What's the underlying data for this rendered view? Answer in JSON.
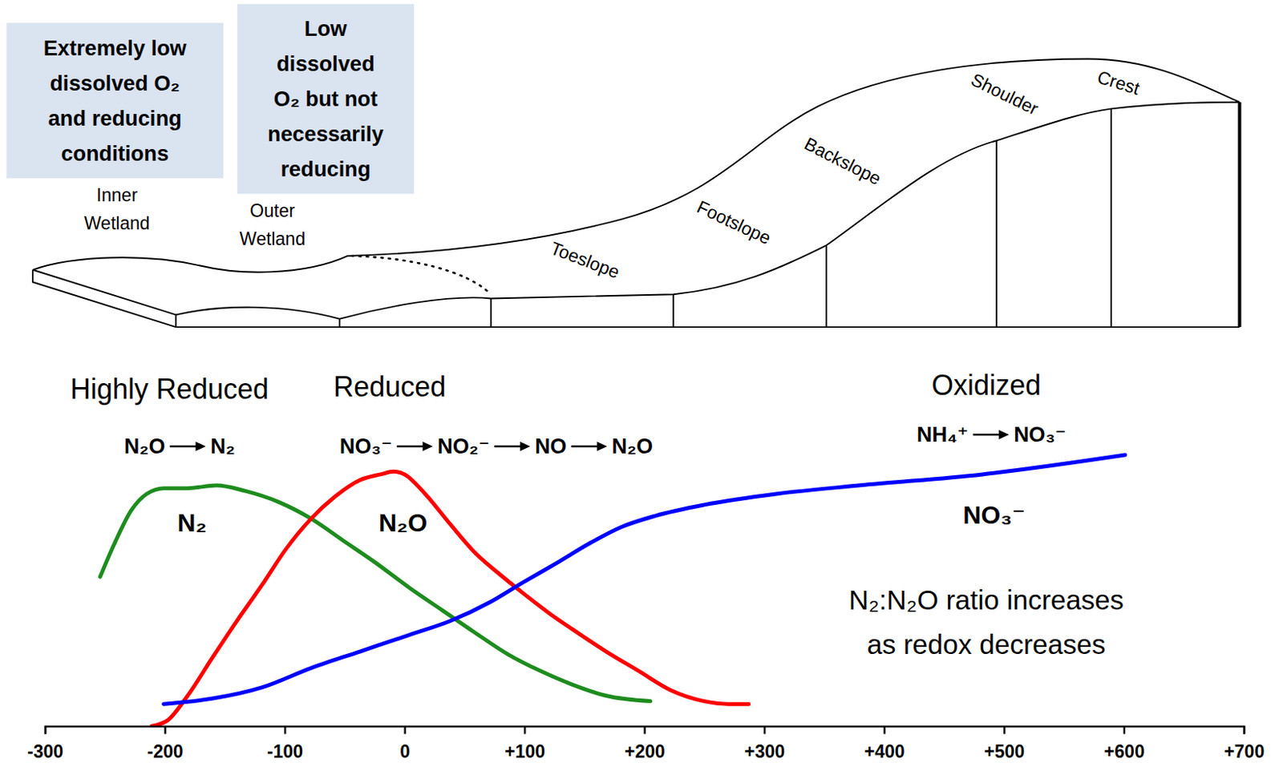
{
  "chart_data": {
    "type": "line",
    "xlim": [
      -300,
      700
    ],
    "xticks": [
      -300,
      -200,
      -100,
      0,
      {
        "value": 100,
        "label": "+100"
      },
      {
        "value": 200,
        "label": "+200"
      },
      {
        "value": 300,
        "label": "+300"
      },
      {
        "value": 400,
        "label": "+400"
      },
      {
        "value": 500,
        "label": "+500"
      },
      {
        "value": 600,
        "label": "+600"
      },
      {
        "value": 700,
        "label": "+700"
      }
    ],
    "ylim": [
      0,
      100
    ],
    "tick_labels": "x",
    "series": [
      {
        "name": "N₂",
        "color": "#1e8c1e",
        "x": [
          -254,
          -242,
          -228,
          -215,
          -201,
          -181,
          -157,
          -133,
          -105,
          -78,
          -51,
          -24,
          4,
          31,
          58,
          86,
          113,
          140,
          168,
          205
        ],
        "values": [
          54,
          66,
          78,
          84,
          86,
          86,
          87,
          85,
          81,
          75,
          67,
          59,
          50,
          42,
          34,
          26,
          20,
          15,
          11,
          9
        ]
      },
      {
        "name": "N₂O",
        "color": "#ff0000",
        "x": [
          -211,
          -198,
          -181,
          -160,
          -140,
          -119,
          -99,
          -78,
          -58,
          -37,
          -20,
          -9,
          0,
          17,
          38,
          58,
          79,
          99,
          120,
          140,
          168,
          195,
          222,
          250,
          270,
          287
        ],
        "values": [
          0,
          2,
          11,
          25,
          38,
          51,
          64,
          75,
          83,
          89,
          91,
          92,
          91,
          84,
          73,
          63,
          55,
          48,
          41,
          35,
          27,
          20,
          13,
          9,
          8,
          8
        ]
      },
      {
        "name": "NO₃⁻",
        "color": "#0000ff",
        "x": [
          -201,
          -160,
          -119,
          -78,
          -37,
          4,
          38,
          72,
          99,
          127,
          154,
          181,
          209,
          250,
          311,
          379,
          482,
          601
        ],
        "values": [
          8,
          10,
          14,
          21,
          27,
          33,
          38,
          45,
          52,
          59,
          66,
          72,
          76,
          80,
          84,
          87,
          91,
          98
        ]
      }
    ],
    "zones": [
      "Highly Reduced",
      "Reduced",
      "Oxidized"
    ],
    "reactions": [
      [
        "N₂O",
        "N₂"
      ],
      [
        "NO₃⁻",
        "NO₂⁻",
        "NO",
        "N₂O"
      ],
      [
        "NH₄⁺",
        "NO₃⁻"
      ]
    ],
    "note": [
      "N₂:N₂O ratio increases",
      "as redox decreases"
    ]
  },
  "diagram": {
    "boxes": [
      {
        "lines": [
          "Extremely low",
          "dissolved O₂",
          "and reducing",
          "conditions"
        ]
      },
      {
        "lines": [
          "Low",
          "dissolved",
          "O₂ but not",
          "necessarily",
          "reducing"
        ]
      }
    ],
    "wetland_labels": [
      [
        "Inner",
        "Wetland"
      ],
      [
        "Outer",
        "Wetland"
      ]
    ],
    "slope_labels": [
      "Toeslope",
      "Footslope",
      "Backslope",
      "Shoulder",
      "Crest"
    ]
  }
}
